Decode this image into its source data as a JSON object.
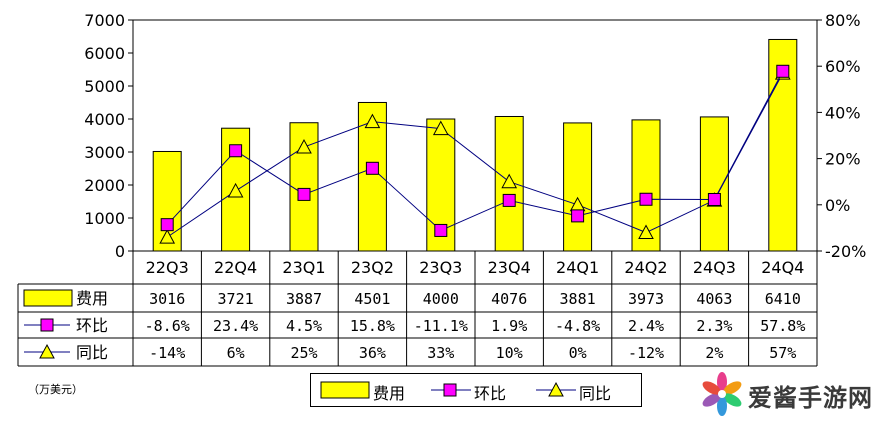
{
  "chart_data": {
    "type": "bar",
    "categories": [
      "22Q3",
      "22Q4",
      "23Q1",
      "23Q2",
      "23Q3",
      "23Q4",
      "24Q1",
      "24Q2",
      "24Q3",
      "24Q4"
    ],
    "series": [
      {
        "name": "费用",
        "type": "bar",
        "axis": "left",
        "values": [
          3016,
          3721,
          3887,
          4501,
          4000,
          4076,
          3881,
          3973,
          4063,
          6410
        ],
        "labels": [
          "3016",
          "3721",
          "3887",
          "4501",
          "4000",
          "4076",
          "3881",
          "3973",
          "4063",
          "6410"
        ],
        "color": "#ffff00"
      },
      {
        "name": "环比",
        "type": "line",
        "axis": "right",
        "values": [
          -8.6,
          23.4,
          4.5,
          15.8,
          -11.1,
          1.9,
          -4.8,
          2.4,
          2.3,
          57.8
        ],
        "labels": [
          "-8.6%",
          "23.4%",
          "4.5%",
          "15.8%",
          "-11.1%",
          "1.9%",
          "-4.8%",
          "2.4%",
          "2.3%",
          "57.8%"
        ],
        "color": "#000080",
        "marker_color": "#ff00ff"
      },
      {
        "name": "同比",
        "type": "line",
        "axis": "right",
        "values": [
          -14,
          6,
          25,
          36,
          33,
          10,
          0,
          -12,
          2,
          57
        ],
        "labels": [
          "-14%",
          "6%",
          "25%",
          "36%",
          "33%",
          "10%",
          "0%",
          "-12%",
          "2%",
          "57%"
        ],
        "color": "#000080",
        "marker_color": "#ffff00"
      }
    ],
    "y_left": {
      "ylim": [
        0,
        7000
      ],
      "ticks": [
        "0",
        "1000",
        "2000",
        "3000",
        "4000",
        "5000",
        "6000",
        "7000"
      ]
    },
    "y_right": {
      "ylim": [
        -20,
        80
      ],
      "ticks": [
        "-20%",
        "0%",
        "20%",
        "40%",
        "60%",
        "80%"
      ]
    },
    "unit_note": "（万美元）",
    "grid": false,
    "legend_position": "bottom"
  },
  "legend": {
    "items": [
      "费用",
      "环比",
      "同比"
    ]
  },
  "watermark": {
    "text": "爱酱手游网"
  }
}
